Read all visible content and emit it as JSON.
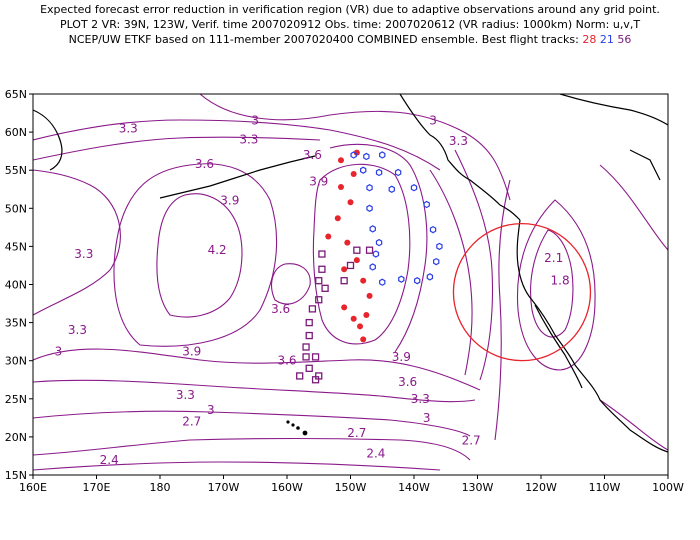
{
  "title": {
    "line1": "Expected forecast error reduction in verification region (VR) due to adaptive observations around any grid point.",
    "line2": "PLOT 2 VR: 39N, 123W, Verif. time 2007020912 Obs. time: 2007020612 (VR radius: 1000km) Norm: u,v,T",
    "line3_prefix": "NCEP/UW ETKF based on 111-member 2007020400 COMBINED ensemble.  Best flight tracks:",
    "track_a": "28",
    "track_b": "21",
    "track_c": "56"
  },
  "colors": {
    "contour": "#8a1a8a",
    "red_track": "#e8242c",
    "blue_track": "#2a3ee8",
    "purple_track": "#7a1a7a",
    "vr_circle": "#e8242c"
  },
  "map": {
    "lon_range": [
      160,
      260
    ],
    "lat_range": [
      15,
      65
    ],
    "lon_ticks": [
      "160E",
      "170E",
      "180",
      "170W",
      "160W",
      "150W",
      "140W",
      "130W",
      "120W",
      "110W",
      "100W"
    ],
    "lat_ticks": [
      "15N",
      "20N",
      "25N",
      "30N",
      "35N",
      "40N",
      "45N",
      "50N",
      "55N",
      "60N",
      "65N"
    ],
    "verification_region": {
      "lat": 39,
      "lon": 237,
      "radius_km": 1000
    }
  },
  "contour_labels": [
    {
      "text": "3",
      "lon": 195,
      "lat": 61.5
    },
    {
      "text": "3",
      "lon": 223,
      "lat": 61.5
    },
    {
      "text": "3.3",
      "lon": 175,
      "lat": 60.5
    },
    {
      "text": "3.3",
      "lon": 194,
      "lat": 59
    },
    {
      "text": "3.3",
      "lon": 227,
      "lat": 58.8
    },
    {
      "text": "3.6",
      "lon": 187,
      "lat": 55.8
    },
    {
      "text": "3.6",
      "lon": 204,
      "lat": 57
    },
    {
      "text": "3.9",
      "lon": 191,
      "lat": 51
    },
    {
      "text": "3.9",
      "lon": 205,
      "lat": 53.5
    },
    {
      "text": "4.2",
      "lon": 189,
      "lat": 44.5
    },
    {
      "text": "3.3",
      "lon": 168,
      "lat": 44
    },
    {
      "text": "3.6",
      "lon": 199,
      "lat": 36.8
    },
    {
      "text": "3.3",
      "lon": 167,
      "lat": 34
    },
    {
      "text": "3",
      "lon": 164,
      "lat": 31.2
    },
    {
      "text": "3.9",
      "lon": 185,
      "lat": 31.2
    },
    {
      "text": "3.6",
      "lon": 200,
      "lat": 30
    },
    {
      "text": "3.9",
      "lon": 218,
      "lat": 30.5
    },
    {
      "text": "3.6",
      "lon": 219,
      "lat": 27.2
    },
    {
      "text": "3.3",
      "lon": 221,
      "lat": 25
    },
    {
      "text": "3.3",
      "lon": 184,
      "lat": 25.5
    },
    {
      "text": "3",
      "lon": 188,
      "lat": 23.5
    },
    {
      "text": "3",
      "lon": 222,
      "lat": 22.5
    },
    {
      "text": "2.7",
      "lon": 185,
      "lat": 22
    },
    {
      "text": "2.7",
      "lon": 211,
      "lat": 20.5
    },
    {
      "text": "2.7",
      "lon": 229,
      "lat": 19.5
    },
    {
      "text": "2.4",
      "lon": 172,
      "lat": 17
    },
    {
      "text": "2.4",
      "lon": 214,
      "lat": 17.8
    },
    {
      "text": "2.1",
      "lon": 242,
      "lat": 43.5
    },
    {
      "text": "1.8",
      "lon": 243,
      "lat": 40.5
    }
  ],
  "tracks": {
    "red": [
      [
        211,
        57.3
      ],
      [
        208.5,
        56.3
      ],
      [
        210.5,
        54.5
      ],
      [
        208.5,
        52.8
      ],
      [
        210,
        50.8
      ],
      [
        208,
        48.7
      ],
      [
        206.5,
        46.3
      ],
      [
        209.5,
        45.5
      ],
      [
        211,
        43.2
      ],
      [
        209,
        42
      ],
      [
        212,
        40.5
      ],
      [
        213,
        38.5
      ],
      [
        209,
        37
      ],
      [
        211.5,
        34.5
      ],
      [
        212.5,
        36
      ],
      [
        212,
        32.8
      ],
      [
        210.5,
        35.5
      ]
    ],
    "blue": [
      [
        210.5,
        57
      ],
      [
        212.5,
        56.8
      ],
      [
        215,
        57
      ],
      [
        212,
        55
      ],
      [
        214.5,
        54.7
      ],
      [
        217.5,
        54.7
      ],
      [
        213,
        52.7
      ],
      [
        216.5,
        52.5
      ],
      [
        220,
        52.7
      ],
      [
        213,
        50
      ],
      [
        213.5,
        47.3
      ],
      [
        214.5,
        45.5
      ],
      [
        214,
        44
      ],
      [
        213.5,
        42.3
      ],
      [
        215,
        40.3
      ],
      [
        218,
        40.7
      ],
      [
        220.5,
        40.5
      ],
      [
        222.5,
        41
      ],
      [
        223.5,
        43
      ],
      [
        224,
        45
      ],
      [
        223,
        47.2
      ],
      [
        222,
        50.5
      ]
    ],
    "purple": [
      [
        205.5,
        44
      ],
      [
        211,
        44.5
      ],
      [
        213,
        44.5
      ],
      [
        210,
        42.5
      ],
      [
        205.5,
        42
      ],
      [
        209,
        40.5
      ],
      [
        205,
        40.5
      ],
      [
        206,
        39.5
      ],
      [
        205,
        38
      ],
      [
        204,
        36.8
      ],
      [
        203.5,
        35
      ],
      [
        203.5,
        33.3
      ],
      [
        203,
        31.8
      ],
      [
        203,
        30.5
      ],
      [
        204.5,
        30.5
      ],
      [
        203.5,
        29
      ],
      [
        205,
        28
      ],
      [
        204.5,
        27.5
      ],
      [
        202,
        28
      ]
    ]
  }
}
